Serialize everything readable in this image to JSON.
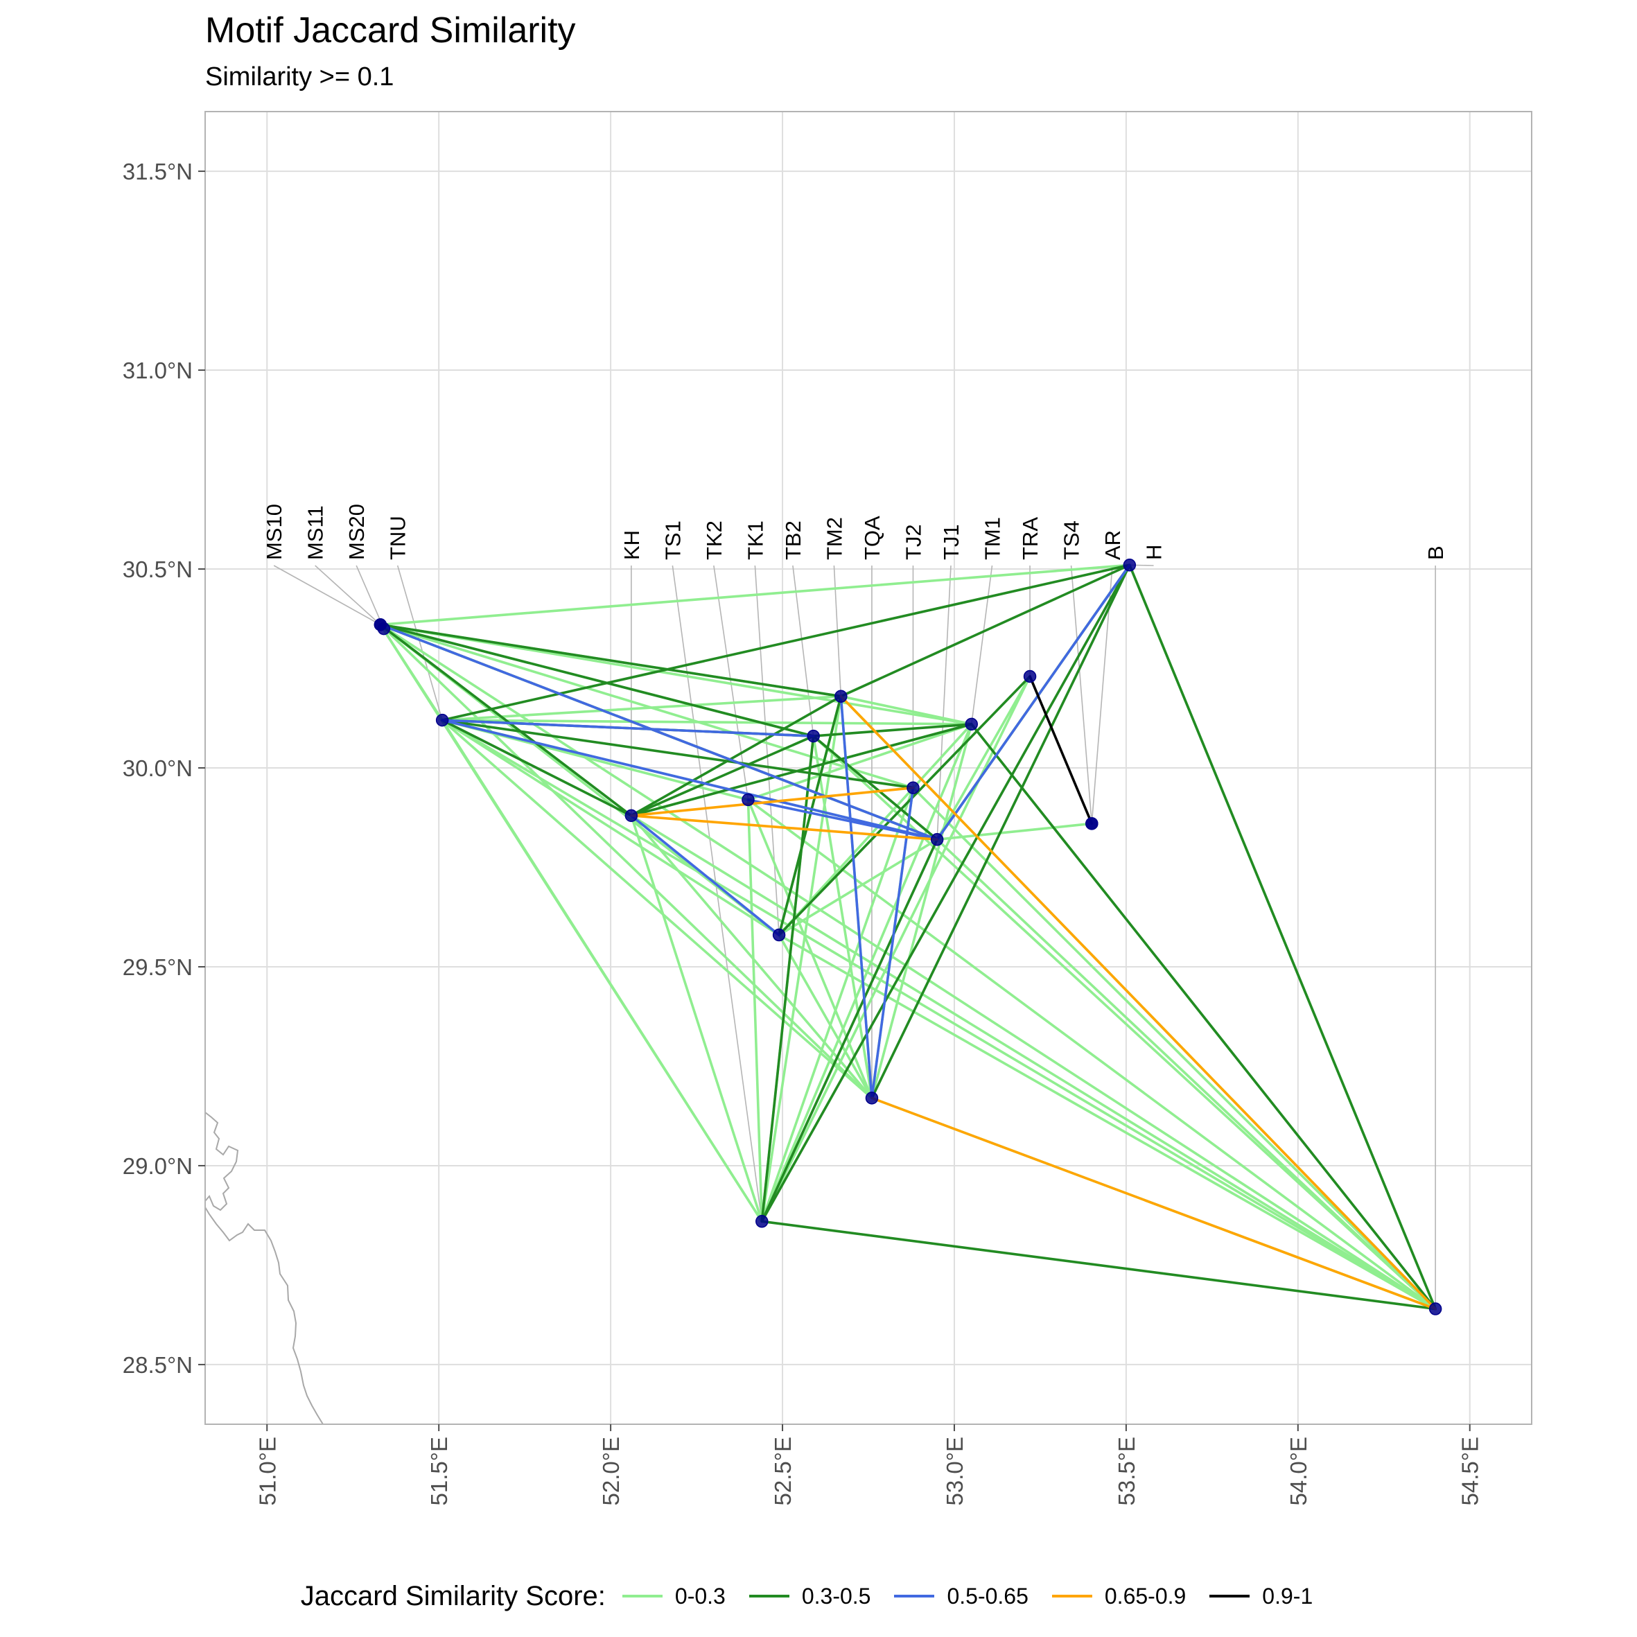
{
  "title": "Motif Jaccard Similarity",
  "subtitle": "Similarity >= 0.1",
  "chart_data": {
    "type": "network-map",
    "x_axis": {
      "range": [
        50.82,
        54.68
      ],
      "ticks": [
        51.0,
        51.5,
        52.0,
        52.5,
        53.0,
        53.5,
        54.0,
        54.5
      ],
      "tick_labels": [
        "51.0°E",
        "51.5°E",
        "52.0°E",
        "52.5°E",
        "53.0°E",
        "53.5°E",
        "54.0°E",
        "54.5°E"
      ]
    },
    "y_axis": {
      "range": [
        28.35,
        31.65
      ],
      "ticks": [
        28.5,
        29.0,
        29.5,
        30.0,
        30.5,
        31.0,
        31.5
      ],
      "tick_labels": [
        "28.5°N",
        "29.0°N",
        "29.5°N",
        "30.0°N",
        "30.5°N",
        "31.0°N",
        "31.5°N"
      ]
    },
    "grid": true,
    "legend": {
      "title": "Jaccard Similarity Score:",
      "placement": "bottom",
      "items": [
        {
          "label": "0-0.3",
          "color": "#90EE90"
        },
        {
          "label": "0.3-0.5",
          "color": "#228B22"
        },
        {
          "label": "0.5-0.65",
          "color": "#4169E1"
        },
        {
          "label": "0.65-0.9",
          "color": "#FFA500"
        },
        {
          "label": "0.9-1",
          "color": "#000000"
        }
      ]
    },
    "point_color": "#00008B",
    "sites": [
      {
        "name": "MS10",
        "lon": 51.33,
        "lat": 30.36,
        "label_lon": 51.02
      },
      {
        "name": "MS11",
        "lon": 51.33,
        "lat": 30.36,
        "label_lon": 51.14
      },
      {
        "name": "MS20",
        "lon": 51.34,
        "lat": 30.35,
        "label_lon": 51.26
      },
      {
        "name": "TNU",
        "lon": 51.51,
        "lat": 30.12,
        "label_lon": 51.38
      },
      {
        "name": "KH",
        "lon": 52.06,
        "lat": 29.88,
        "label_lon": 52.06
      },
      {
        "name": "TS1",
        "lon": 52.44,
        "lat": 28.86,
        "label_lon": 52.18
      },
      {
        "name": "TK2",
        "lon": 52.4,
        "lat": 29.92,
        "label_lon": 52.3
      },
      {
        "name": "TK1",
        "lon": 52.49,
        "lat": 29.58,
        "label_lon": 52.42
      },
      {
        "name": "TB2",
        "lon": 52.59,
        "lat": 30.08,
        "label_lon": 52.53
      },
      {
        "name": "TM2",
        "lon": 52.67,
        "lat": 30.18,
        "label_lon": 52.65
      },
      {
        "name": "TQA",
        "lon": 52.76,
        "lat": 29.17,
        "label_lon": 52.76
      },
      {
        "name": "TJ2",
        "lon": 52.88,
        "lat": 29.95,
        "label_lon": 52.88
      },
      {
        "name": "TJ1",
        "lon": 52.95,
        "lat": 29.82,
        "label_lon": 52.99
      },
      {
        "name": "TM1",
        "lon": 53.05,
        "lat": 30.11,
        "label_lon": 53.11
      },
      {
        "name": "TRA",
        "lon": 53.22,
        "lat": 30.23,
        "label_lon": 53.22
      },
      {
        "name": "TS4",
        "lon": 53.4,
        "lat": 29.86,
        "label_lon": 53.34
      },
      {
        "name": "AR",
        "lon": 53.4,
        "lat": 29.86,
        "label_lon": 53.46
      },
      {
        "name": "H",
        "lon": 53.51,
        "lat": 30.51,
        "label_lon": 53.58
      },
      {
        "name": "B",
        "lon": 54.4,
        "lat": 28.64,
        "label_lon": 54.4
      }
    ],
    "edges": [
      [
        "MS11",
        "H",
        "0-0.3"
      ],
      [
        "MS11",
        "TM2",
        "0-0.3"
      ],
      [
        "MS11",
        "TM1",
        "0-0.3"
      ],
      [
        "MS11",
        "TS1",
        "0-0.3"
      ],
      [
        "MS11",
        "TK1",
        "0-0.3"
      ],
      [
        "MS11",
        "TQA",
        "0-0.3"
      ],
      [
        "MS11",
        "B",
        "0-0.3"
      ],
      [
        "MS11",
        "TB2",
        "0-0.3"
      ],
      [
        "MS11",
        "TJ2",
        "0-0.3"
      ],
      [
        "MS11",
        "KH",
        "0-0.3"
      ],
      [
        "MS11",
        "TNU",
        "0-0.3"
      ],
      [
        "TNU",
        "TM2",
        "0-0.3"
      ],
      [
        "TNU",
        "TM1",
        "0-0.3"
      ],
      [
        "TNU",
        "TS1",
        "0-0.3"
      ],
      [
        "TNU",
        "TK1",
        "0-0.3"
      ],
      [
        "TNU",
        "TQA",
        "0-0.3"
      ],
      [
        "TNU",
        "B",
        "0-0.3"
      ],
      [
        "TNU",
        "TJ1",
        "0-0.3"
      ],
      [
        "TNU",
        "TK2",
        "0-0.3"
      ],
      [
        "KH",
        "TS1",
        "0-0.3"
      ],
      [
        "KH",
        "TQA",
        "0-0.3"
      ],
      [
        "KH",
        "TM1",
        "0-0.3"
      ],
      [
        "KH",
        "B",
        "0-0.3"
      ],
      [
        "TS1",
        "TM2",
        "0-0.3"
      ],
      [
        "TS1",
        "TB2",
        "0-0.3"
      ],
      [
        "TS1",
        "TJ2",
        "0-0.3"
      ],
      [
        "TS1",
        "TM1",
        "0-0.3"
      ],
      [
        "TS1",
        "TRA",
        "0-0.3"
      ],
      [
        "TS1",
        "TK2",
        "0-0.3"
      ],
      [
        "TK2",
        "TQA",
        "0-0.3"
      ],
      [
        "TK2",
        "B",
        "0-0.3"
      ],
      [
        "TK2",
        "TM1",
        "0-0.3"
      ],
      [
        "TK1",
        "TM2",
        "0-0.3"
      ],
      [
        "TK1",
        "TQA",
        "0-0.3"
      ],
      [
        "TK1",
        "TM1",
        "0-0.3"
      ],
      [
        "TK1",
        "B",
        "0-0.3"
      ],
      [
        "TB2",
        "TQA",
        "0-0.3"
      ],
      [
        "TB2",
        "TJ1",
        "0-0.3"
      ],
      [
        "TM2",
        "TQA",
        "0-0.3"
      ],
      [
        "TM2",
        "B",
        "0-0.3"
      ],
      [
        "TQA",
        "TM1",
        "0-0.3"
      ],
      [
        "TQA",
        "TJ2",
        "0-0.3"
      ],
      [
        "TQA",
        "B",
        "0-0.3"
      ],
      [
        "TJ2",
        "B",
        "0-0.3"
      ],
      [
        "TJ1",
        "AR",
        "0-0.3"
      ],
      [
        "TJ1",
        "TRA",
        "0-0.3"
      ],
      [
        "TJ1",
        "B",
        "0-0.3"
      ],
      [
        "TM1",
        "B",
        "0-0.3"
      ],
      [
        "H",
        "B",
        "0-0.3"
      ],
      [
        "TM2",
        "TM1",
        "0-0.3"
      ],
      [
        "TB2",
        "B",
        "0-0.3"
      ],
      [
        "TK1",
        "TJ1",
        "0-0.3"
      ],
      [
        "MS11",
        "TB2",
        "0.3-0.5"
      ],
      [
        "MS11",
        "TJ1",
        "0.3-0.5"
      ],
      [
        "MS11",
        "KH",
        "0.3-0.5"
      ],
      [
        "MS11",
        "TM2",
        "0.3-0.5"
      ],
      [
        "TNU",
        "H",
        "0.3-0.5"
      ],
      [
        "TNU",
        "KH",
        "0.3-0.5"
      ],
      [
        "TNU",
        "TJ2",
        "0.3-0.5"
      ],
      [
        "TNU",
        "TB2",
        "0.3-0.5"
      ],
      [
        "KH",
        "TM2",
        "0.3-0.5"
      ],
      [
        "KH",
        "TB2",
        "0.3-0.5"
      ],
      [
        "KH",
        "TM1",
        "0.3-0.5"
      ],
      [
        "TS1",
        "H",
        "0.3-0.5"
      ],
      [
        "TS1",
        "TJ1",
        "0.3-0.5"
      ],
      [
        "TS1",
        "B",
        "0.3-0.5"
      ],
      [
        "TS1",
        "TB2",
        "0.3-0.5"
      ],
      [
        "TK1",
        "TM2",
        "0.3-0.5"
      ],
      [
        "TK1",
        "TRA",
        "0.3-0.5"
      ],
      [
        "TB2",
        "TJ1",
        "0.3-0.5"
      ],
      [
        "TB2",
        "TM1",
        "0.3-0.5"
      ],
      [
        "TM2",
        "H",
        "0.3-0.5"
      ],
      [
        "TQA",
        "H",
        "0.3-0.5"
      ],
      [
        "TJ1",
        "H",
        "0.3-0.5"
      ],
      [
        "TM1",
        "B",
        "0.3-0.5"
      ],
      [
        "H",
        "B",
        "0.3-0.5"
      ],
      [
        "MS11",
        "TJ1",
        "0.5-0.65"
      ],
      [
        "TNU",
        "TB2",
        "0.5-0.65"
      ],
      [
        "TNU",
        "TJ1",
        "0.5-0.65"
      ],
      [
        "KH",
        "TK1",
        "0.5-0.65"
      ],
      [
        "TM2",
        "TQA",
        "0.5-0.65"
      ],
      [
        "TQA",
        "TJ2",
        "0.5-0.65"
      ],
      [
        "TJ1",
        "H",
        "0.5-0.65"
      ],
      [
        "TK2",
        "TJ1",
        "0.5-0.65"
      ],
      [
        "TM2",
        "B",
        "0.65-0.9"
      ],
      [
        "KH",
        "TJ1",
        "0.65-0.9"
      ],
      [
        "TQA",
        "B",
        "0.65-0.9"
      ],
      [
        "KH",
        "TJ2",
        "0.65-0.9"
      ],
      [
        "TRA",
        "AR",
        "0.9-1"
      ]
    ]
  }
}
